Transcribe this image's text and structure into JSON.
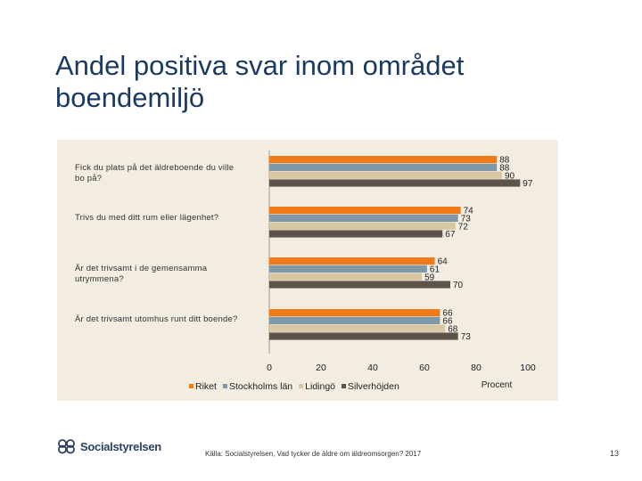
{
  "title": "Andel positiva svar inom området boendemiljö",
  "colors": {
    "Riket": "#ef7b1a",
    "Stockholms län": "#7f99a8",
    "Lidingö": "#d9c6a3",
    "Silverhöjden": "#5e534b",
    "panel": "#f2ece1"
  },
  "chart_data": {
    "type": "bar",
    "orientation": "horizontal",
    "categories": [
      "Fick du plats på det äldreboende du ville bo på?",
      "Trivs du med ditt rum eller lägenhet?",
      "Är det trivsamt i de gemensamma utrymmena?",
      "Är det trivsamt utomhus runt ditt boende?"
    ],
    "series": [
      {
        "name": "Riket",
        "values": [
          88,
          74,
          64,
          66
        ]
      },
      {
        "name": "Stockholms län",
        "values": [
          88,
          73,
          61,
          66
        ]
      },
      {
        "name": "Lidingö",
        "values": [
          90,
          72,
          59,
          68
        ]
      },
      {
        "name": "Silverhöjden",
        "values": [
          97,
          67,
          70,
          73
        ]
      }
    ],
    "xlim": [
      0,
      100
    ],
    "xticks": [
      "0",
      "20",
      "40",
      "60",
      "80",
      "100"
    ],
    "xlabel": "Procent",
    "legend_position": "bottom",
    "grid": false
  },
  "footer": {
    "logo_text": "Socialstyrelsen",
    "source": "Källa: Socialstyrelsen, Vad tycker de äldre om äldreomsorgen? 2017",
    "page_number": "13"
  }
}
